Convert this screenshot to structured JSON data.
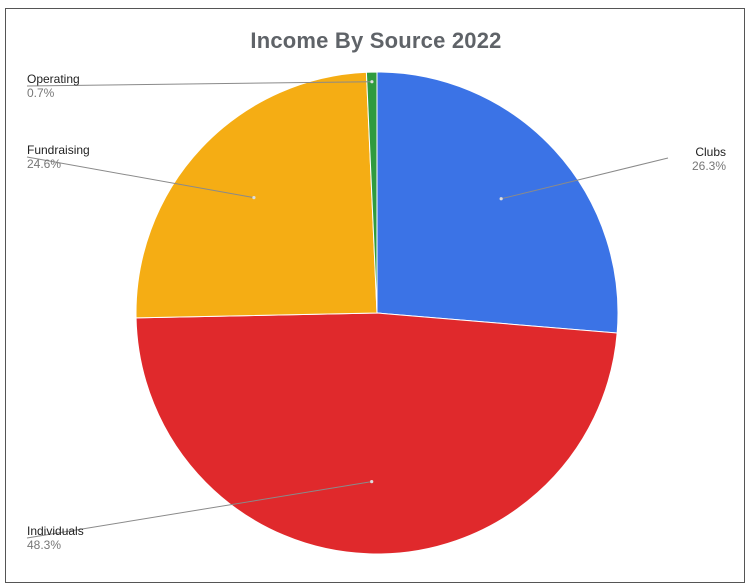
{
  "chart_data": {
    "type": "pie",
    "title": "Income By Source 2022",
    "slices": [
      {
        "name": "Clubs",
        "value": 26.3,
        "label": "26.3%",
        "color": "#3b73e6"
      },
      {
        "name": "Individuals",
        "value": 48.3,
        "label": "48.3%",
        "color": "#e0292c"
      },
      {
        "name": "Fundraising",
        "value": 24.6,
        "label": "24.6%",
        "color": "#f5ad14"
      },
      {
        "name": "Operating",
        "value": 0.7,
        "label": "0.7%",
        "color": "#2f9b3f"
      }
    ],
    "start_angle_deg": 0,
    "direction": "clockwise",
    "legend": "none"
  }
}
